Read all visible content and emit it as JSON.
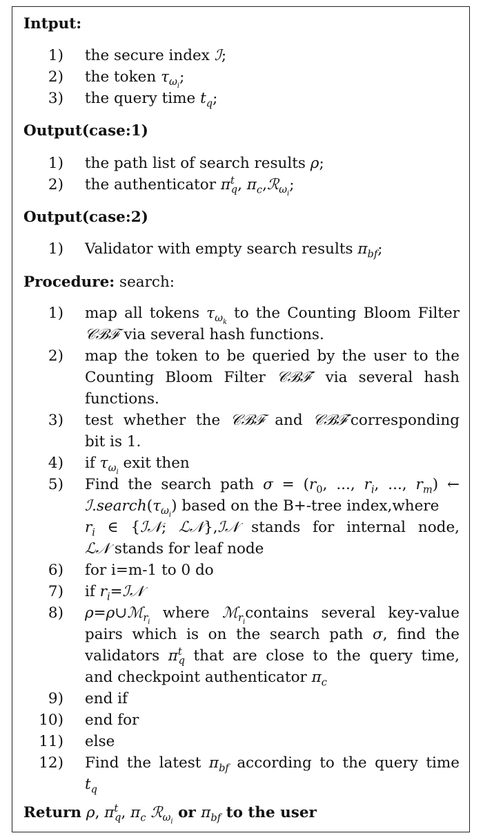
{
  "input": {
    "heading": "Intput:",
    "items": [
      {
        "num": "1)",
        "text": "the secure index ",
        "math": "ℐ;"
      },
      {
        "num": "2)",
        "text": "the token ",
        "math": "τ_ωi;"
      },
      {
        "num": "3)",
        "text": "the query time ",
        "math": "t_q;"
      }
    ]
  },
  "output1": {
    "heading": "Output(case:1)",
    "items": [
      {
        "num": "1)",
        "text": "the path list of search results ρ;"
      },
      {
        "num": "2)",
        "text": "the authenticator π^t_q, π_c, ℛ_ωi;"
      }
    ]
  },
  "output2": {
    "heading": "Output(case:2)",
    "items": [
      {
        "num": "1)",
        "text": "Validator with empty search results π_bf;"
      }
    ]
  },
  "procedure": {
    "heading": "Procedure:",
    "heading_rest": " search:",
    "nums": [
      "1)",
      "2)",
      "3)",
      "4)",
      "5)",
      "6)",
      "7)",
      "8)",
      "9)",
      "10)",
      "11)",
      "12)"
    ],
    "steps": {
      "s1a": "map all tokens ",
      "s1b": " to the Counting Bloom Filter",
      "s1c": " via several hash functions.",
      "s2a": "map the token to be queried by the user to the",
      "s2b": "Counting Bloom Filter ",
      "s2c": " via several hash",
      "s2d": "functions.",
      "s3a": "test whether the ",
      "s3b": " and ",
      "s3c": "corresponding",
      "s3d": "bit is 1.",
      "s4a": "if ",
      "s4b": " exit then",
      "s5a": "Find the search path ",
      "s5b": " based on the B+-tree index,where",
      "s5c": " stands for internal node,",
      "s5d": " stands for leaf node",
      "s6": "for i=m-1 to 0 do",
      "s7a": "if ",
      "s8a": " where ",
      "s8b": "contains several key-value",
      "s8c": "pairs which is on the search path ",
      "s8d": ", find the",
      "s8e": "validators ",
      "s8f": " that are close to the query time,",
      "s8g": "and checkpoint authenticator ",
      "s9": "end if",
      "s10": "end for",
      "s11": "else",
      "s12a": "Find the latest ",
      "s12b": " according to the query time"
    }
  },
  "ret": {
    "word": "Return",
    "or": " or ",
    "tail": " to the user"
  }
}
